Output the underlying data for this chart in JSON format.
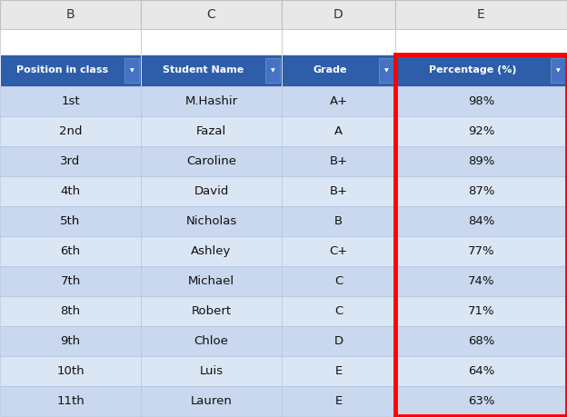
{
  "col_headers": [
    "B",
    "C",
    "D",
    "E"
  ],
  "header_row": [
    "Position in class",
    "Student Name",
    "Grade",
    "Percentage (%)"
  ],
  "rows": [
    [
      "1st",
      "M.Hashir",
      "A+",
      "98%"
    ],
    [
      "2nd",
      "Fazal",
      "A",
      "92%"
    ],
    [
      "3rd",
      "Caroline",
      "B+",
      "89%"
    ],
    [
      "4th",
      "David",
      "B+",
      "87%"
    ],
    [
      "5th",
      "Nicholas",
      "B",
      "84%"
    ],
    [
      "6th",
      "Ashley",
      "C+",
      "77%"
    ],
    [
      "7th",
      "Michael",
      "C",
      "74%"
    ],
    [
      "8th",
      "Robert",
      "C",
      "71%"
    ],
    [
      "9th",
      "Chloe",
      "D",
      "68%"
    ],
    [
      "10th",
      "Luis",
      "E",
      "64%"
    ],
    [
      "11th",
      "Lauren",
      "E",
      "63%"
    ]
  ],
  "header_bg": "#2E5EAA",
  "header_text": "#FFFFFF",
  "row_bg_even": "#C9D8EE",
  "row_bg_odd": "#DBE6F5",
  "excel_header_bg": "#E8E8E8",
  "excel_header_border": "#C0C0C0",
  "highlight_border": "#FF0000",
  "white": "#FFFFFF",
  "cell_border": "#B0C4DE"
}
